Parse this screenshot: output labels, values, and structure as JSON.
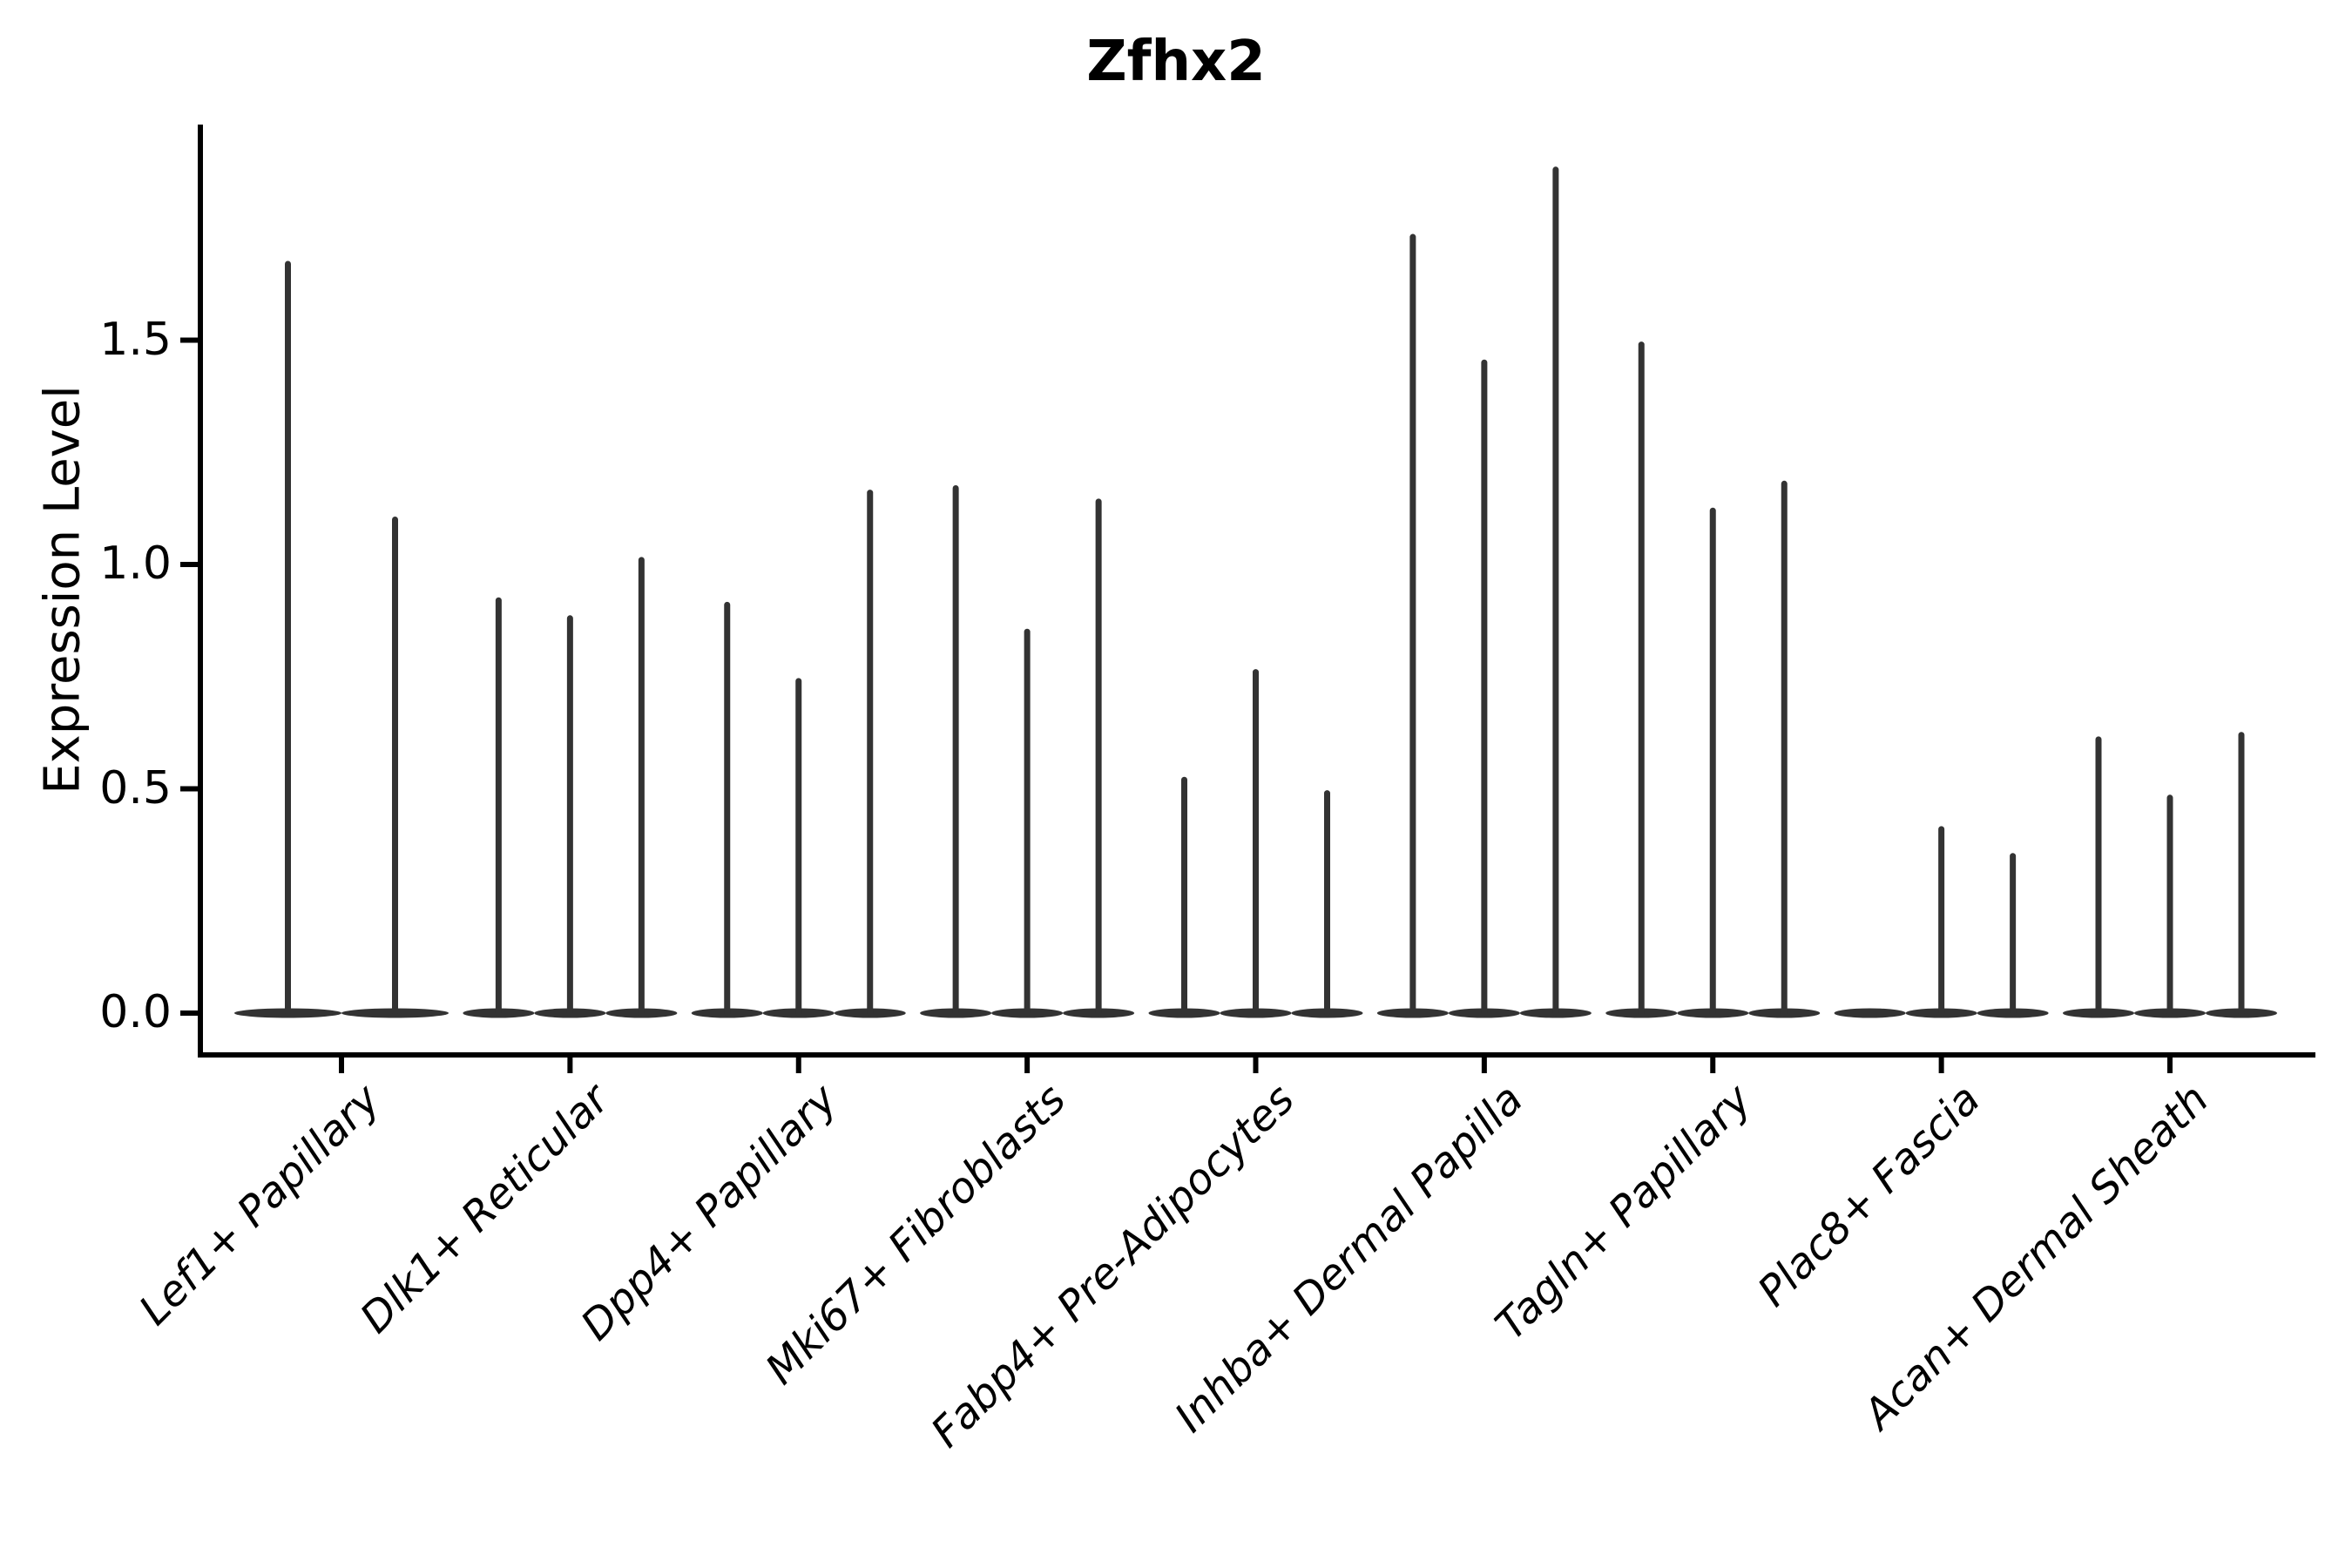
{
  "figure": {
    "title": "Zfhx2",
    "ylabel": "Expression Level"
  },
  "colors": {
    "background": "#ffffff",
    "axis": "#000000",
    "text": "#000000",
    "violin": "#333333"
  },
  "chart_data": {
    "type": "violin",
    "title": "Zfhx2",
    "xlabel": "",
    "ylabel": "Expression Level",
    "ylim": [
      -0.1,
      1.98
    ],
    "yticks": [
      0.0,
      0.5,
      1.0,
      1.5
    ],
    "ytick_labels": [
      "0.0",
      "0.5",
      "1.0",
      "1.5"
    ],
    "grid": false,
    "legend": "none",
    "x_tick_rotation": 45,
    "x_tick_style": "italic",
    "baseline_value": 0.0,
    "description": "Sparse expression violins: each category shows 2-3 very thin violins (flat base at 0 with a narrow spike up to the max expression value). A violin value of 0 means a completely flat violin with no spike.",
    "categories": [
      "Lef1+ Papillary",
      "Dlk1+ Reticular",
      "Dpp4+ Papillary",
      "Mki67+ Fibroblasts",
      "Fabp4+ Pre-Adipocytes",
      "Inhba+ Dermal Papilla",
      "Tagln+ Papillary",
      "Plac8+ Fascia",
      "Acan+ Dermal Sheath"
    ],
    "series": [
      {
        "category": "Lef1+ Papillary",
        "violins": [
          1.67,
          1.1
        ]
      },
      {
        "category": "Dlk1+ Reticular",
        "violins": [
          0.92,
          0.88,
          1.01
        ]
      },
      {
        "category": "Dpp4+ Papillary",
        "violins": [
          0.91,
          0.74,
          1.16
        ]
      },
      {
        "category": "Mki67+ Fibroblasts",
        "violins": [
          1.17,
          0.85,
          1.14
        ]
      },
      {
        "category": "Fabp4+ Pre-Adipocytes",
        "violins": [
          0.52,
          0.76,
          0.49
        ]
      },
      {
        "category": "Inhba+ Dermal Papilla",
        "violins": [
          1.73,
          1.45,
          1.88
        ]
      },
      {
        "category": "Tagln+ Papillary",
        "violins": [
          1.49,
          1.12,
          1.18
        ]
      },
      {
        "category": "Plac8+ Fascia",
        "violins": [
          0.0,
          0.41,
          0.35
        ]
      },
      {
        "category": "Acan+ Dermal Sheath",
        "violins": [
          0.61,
          0.48,
          0.62
        ]
      }
    ]
  }
}
